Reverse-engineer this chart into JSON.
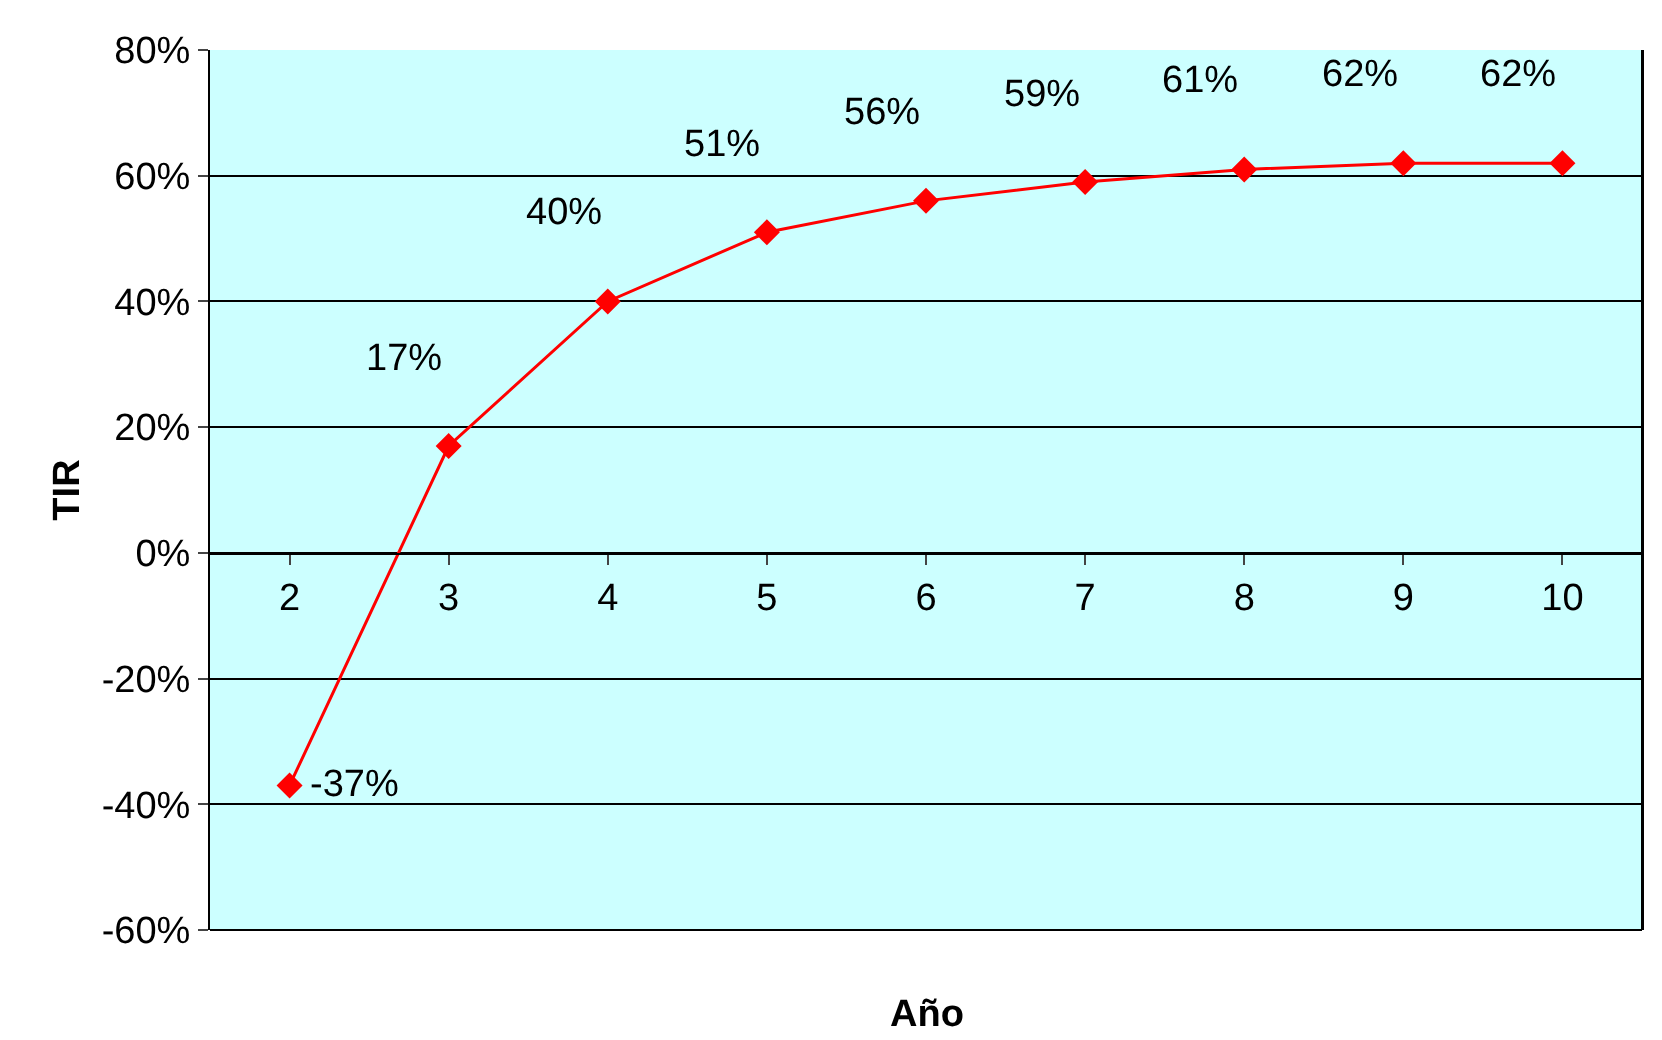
{
  "chart_data": {
    "type": "line",
    "xlabel": "Año",
    "ylabel": "TIR",
    "categories": [
      "2",
      "3",
      "4",
      "5",
      "6",
      "7",
      "8",
      "9",
      "10"
    ],
    "series": [
      {
        "color": "#ff0000",
        "values": [
          -37,
          17,
          40,
          51,
          56,
          59,
          61,
          62,
          62
        ],
        "value_labels": [
          "-37%",
          "17%",
          "40%",
          "51%",
          "56%",
          "59%",
          "61%",
          "62%",
          "62%"
        ]
      }
    ],
    "ylim": [
      -60,
      80
    ],
    "yticks": [
      {
        "value": -60,
        "label": "-60%"
      },
      {
        "value": -40,
        "label": "-40%"
      },
      {
        "value": -20,
        "label": "-20%"
      },
      {
        "value": 0,
        "label": "0%"
      },
      {
        "value": 20,
        "label": "20%"
      },
      {
        "value": 40,
        "label": "40%"
      },
      {
        "value": 60,
        "label": "60%"
      },
      {
        "value": 80,
        "label": "80%"
      }
    ],
    "grid": "y",
    "legend": false,
    "marker": "diamond",
    "line_style": "solid"
  }
}
